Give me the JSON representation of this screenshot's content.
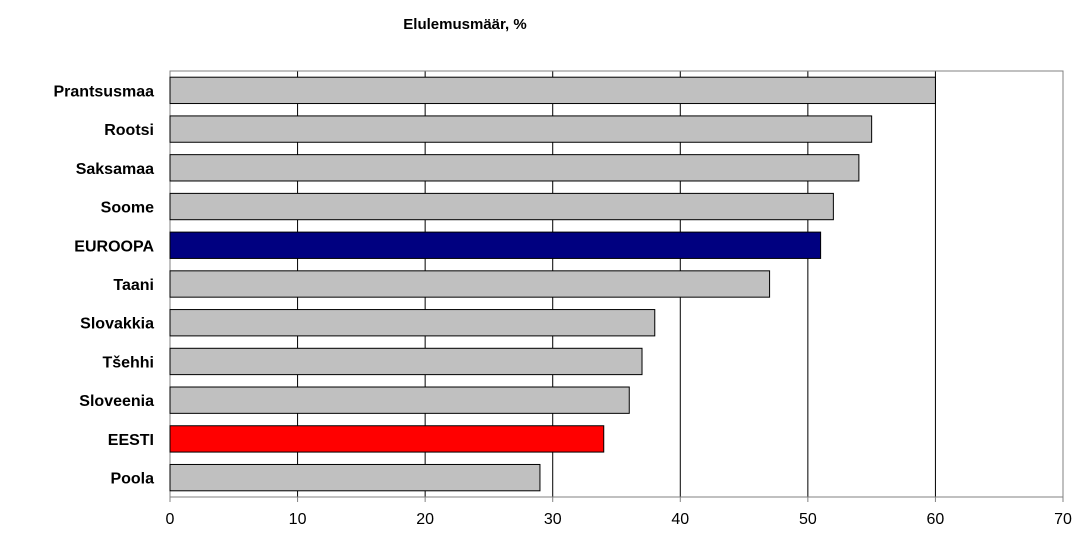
{
  "chart_data": {
    "type": "bar",
    "orientation": "horizontal",
    "title": "Elulemusmäär, %",
    "categories": [
      "Prantsusmaa",
      "Rootsi",
      "Saksamaa",
      "Soome",
      "EUROOPA",
      "Taani",
      "Slovakkia",
      "Tšehhi",
      "Sloveenia",
      "EESTI",
      "Poola"
    ],
    "values": [
      60,
      55,
      54,
      52,
      51,
      47,
      38,
      37,
      36,
      34,
      29
    ],
    "bar_colors": [
      "#c0c0c0",
      "#c0c0c0",
      "#c0c0c0",
      "#c0c0c0",
      "#000080",
      "#c0c0c0",
      "#c0c0c0",
      "#c0c0c0",
      "#c0c0c0",
      "#ff0000",
      "#c0c0c0"
    ],
    "xlim": [
      0,
      70
    ],
    "xticks": [
      0,
      10,
      20,
      30,
      40,
      50,
      60,
      70
    ],
    "grid": "vertical",
    "xlabel": "",
    "ylabel": ""
  }
}
